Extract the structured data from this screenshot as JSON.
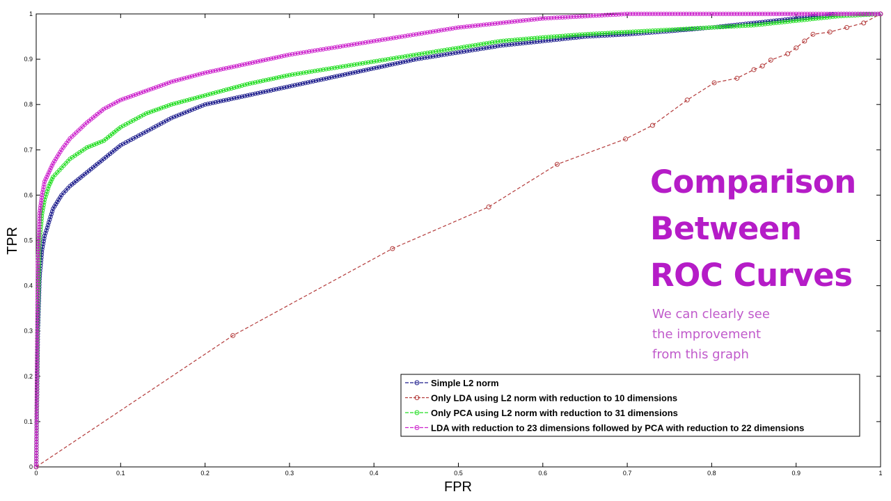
{
  "slide": {
    "title_lines": [
      "Comparison",
      "Between",
      "ROC Curves"
    ],
    "subtitle_lines": [
      "We can clearly see",
      "the improvement",
      "from this graph"
    ]
  },
  "chart_data": {
    "type": "line",
    "xlabel": "FPR",
    "ylabel": "TPR",
    "xlim": [
      0,
      1
    ],
    "ylim": [
      0,
      1
    ],
    "x_ticks": [
      "0",
      "0.1",
      "0.2",
      "0.3",
      "0.4",
      "0.5",
      "0.6",
      "0.7",
      "0.8",
      "0.9",
      "1"
    ],
    "y_ticks": [
      "0",
      "0.1",
      "0.2",
      "0.3",
      "0.4",
      "0.5",
      "0.6",
      "0.7",
      "0.8",
      "0.9",
      "1"
    ],
    "grid": false,
    "legend_position": "bottom-right",
    "series": [
      {
        "name": "Simple L2 norm",
        "color": "#1c1c8c",
        "style": "solid-circles",
        "x": [
          0,
          0.002,
          0.004,
          0.007,
          0.01,
          0.015,
          0.02,
          0.03,
          0.04,
          0.06,
          0.08,
          0.1,
          0.13,
          0.16,
          0.2,
          0.25,
          0.3,
          0.35,
          0.4,
          0.45,
          0.5,
          0.55,
          0.6,
          0.65,
          0.7,
          0.75,
          0.8,
          0.85,
          0.9,
          0.95,
          1
        ],
        "y": [
          0,
          0.3,
          0.42,
          0.48,
          0.51,
          0.54,
          0.57,
          0.6,
          0.62,
          0.65,
          0.68,
          0.71,
          0.74,
          0.77,
          0.8,
          0.82,
          0.84,
          0.86,
          0.88,
          0.9,
          0.915,
          0.93,
          0.94,
          0.95,
          0.955,
          0.962,
          0.97,
          0.98,
          0.99,
          1,
          1
        ]
      },
      {
        "name": "Only LDA using L2 norm with reduction to 10 dimensions",
        "color": "#b33a3a",
        "style": "dashed-sparse",
        "x": [
          0,
          0.233,
          0.422,
          0.536,
          0.617,
          0.698,
          0.73,
          0.771,
          0.803,
          0.83,
          0.85,
          0.86,
          0.87,
          0.89,
          0.9,
          0.91,
          0.92,
          0.94,
          0.96,
          0.98,
          1
        ],
        "y": [
          0,
          0.29,
          0.482,
          0.574,
          0.668,
          0.724,
          0.754,
          0.81,
          0.848,
          0.858,
          0.877,
          0.885,
          0.898,
          0.912,
          0.925,
          0.94,
          0.955,
          0.96,
          0.97,
          0.98,
          1
        ]
      },
      {
        "name": "Only PCA using L2 norm with reduction to 31 dimensions",
        "color": "#22dd22",
        "style": "solid-circles",
        "x": [
          0,
          0.002,
          0.004,
          0.007,
          0.01,
          0.015,
          0.02,
          0.03,
          0.04,
          0.06,
          0.08,
          0.1,
          0.13,
          0.16,
          0.2,
          0.25,
          0.3,
          0.35,
          0.4,
          0.45,
          0.5,
          0.55,
          0.6,
          0.65,
          0.7,
          0.75,
          0.8,
          0.85,
          0.9,
          0.95,
          1
        ],
        "y": [
          0,
          0.35,
          0.5,
          0.56,
          0.59,
          0.62,
          0.64,
          0.66,
          0.68,
          0.705,
          0.72,
          0.75,
          0.78,
          0.8,
          0.82,
          0.845,
          0.865,
          0.88,
          0.895,
          0.91,
          0.925,
          0.94,
          0.948,
          0.955,
          0.96,
          0.965,
          0.97,
          0.975,
          0.985,
          0.995,
          1
        ]
      },
      {
        "name": "LDA with reduction to 23 dimensions followed by PCA with reduction to 22 dimensions",
        "color": "#cc22cc",
        "style": "solid-circles",
        "x": [
          0,
          0.002,
          0.004,
          0.007,
          0.01,
          0.015,
          0.02,
          0.03,
          0.04,
          0.06,
          0.08,
          0.1,
          0.13,
          0.16,
          0.2,
          0.25,
          0.3,
          0.35,
          0.4,
          0.45,
          0.5,
          0.55,
          0.6,
          0.65,
          0.7,
          0.75,
          0.8,
          0.85,
          0.9,
          0.95,
          1
        ],
        "y": [
          0,
          0.45,
          0.56,
          0.6,
          0.63,
          0.65,
          0.67,
          0.7,
          0.725,
          0.76,
          0.79,
          0.81,
          0.83,
          0.85,
          0.87,
          0.89,
          0.91,
          0.925,
          0.94,
          0.955,
          0.97,
          0.98,
          0.99,
          0.995,
          1,
          1,
          1,
          1,
          1,
          1,
          1
        ]
      }
    ]
  }
}
